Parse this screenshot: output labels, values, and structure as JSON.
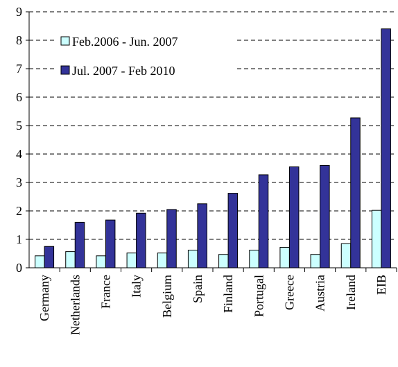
{
  "chart_data": {
    "type": "bar",
    "categories": [
      "Germany",
      "Netherlands",
      "France",
      "Italy",
      "Belgium",
      "Spain",
      "Finland",
      "Portugal",
      "Greece",
      "Austria",
      "Ireland",
      "EIB"
    ],
    "series": [
      {
        "name": "Feb.2006 - Jun. 2007",
        "color": "#ccffff",
        "values": [
          0.42,
          0.57,
          0.42,
          0.52,
          0.52,
          0.62,
          0.47,
          0.62,
          0.72,
          0.47,
          0.85,
          2.02
        ]
      },
      {
        "name": "Jul. 2007 - Feb 2010",
        "color": "#333399",
        "values": [
          0.75,
          1.6,
          1.68,
          1.92,
          2.05,
          2.25,
          2.62,
          3.27,
          3.55,
          3.6,
          5.27,
          8.4
        ]
      }
    ],
    "ylim": [
      0,
      9
    ],
    "yticks": [
      0,
      1,
      2,
      3,
      4,
      5,
      6,
      7,
      8,
      9
    ],
    "grid": true,
    "legend": "upper left"
  }
}
